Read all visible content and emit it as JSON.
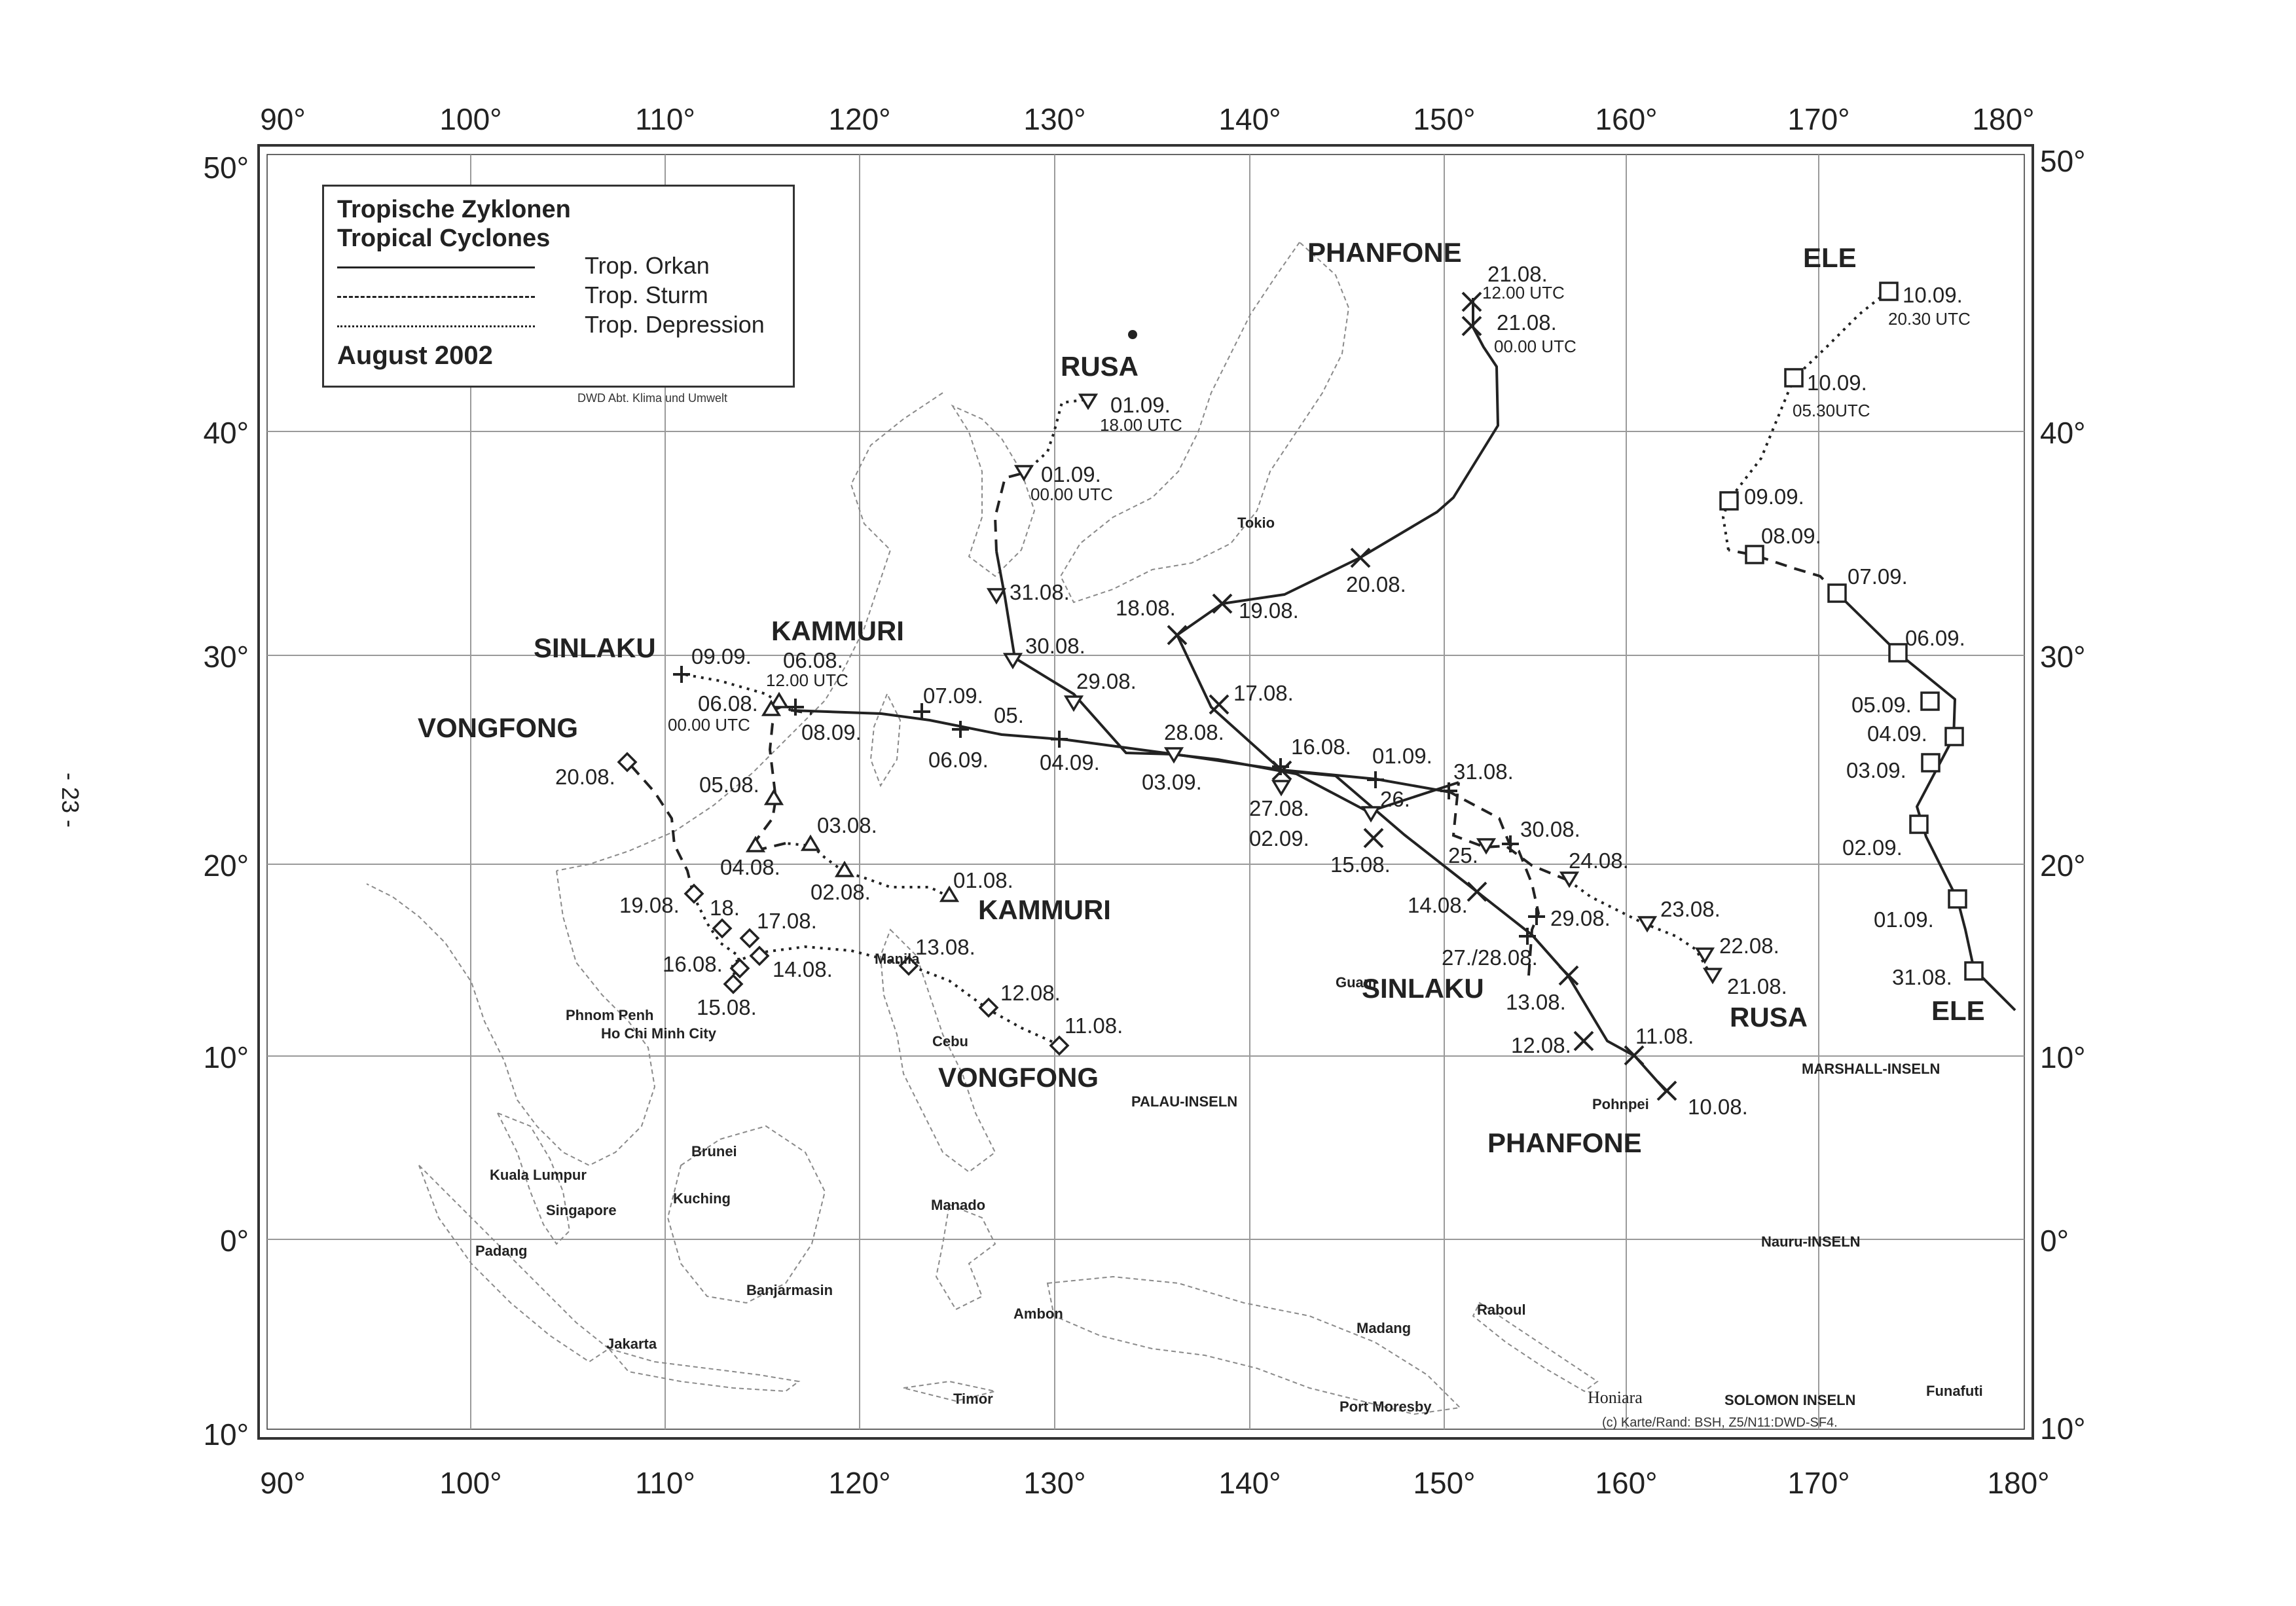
{
  "page_number": "- 23 -",
  "legend": {
    "title_de": "Tropische Zyklonen",
    "title_en": "Tropical Cyclones",
    "entries": [
      {
        "label": "Trop. Orkan",
        "style": "solid"
      },
      {
        "label": "Trop. Sturm",
        "style": "dashed"
      },
      {
        "label": "Trop. Depression",
        "style": "dotted"
      }
    ],
    "period": "August 2002"
  },
  "credit": "DWD   Abt. Klima und Umwelt",
  "copyright": "(c) Karte/Rand: BSH, Z5/N11:DWD-SF4.",
  "axes": {
    "lon_labels": [
      "90°",
      "100°",
      "110°",
      "120°",
      "130°",
      "140°",
      "150°",
      "160°",
      "170°",
      "180°"
    ],
    "lat_labels": [
      "50°",
      "40°",
      "30°",
      "20°",
      "10°",
      "0°",
      "10°"
    ]
  },
  "storm_names": [
    {
      "text": "PHANFONE"
    },
    {
      "text": "ELE"
    },
    {
      "text": "RUSA"
    },
    {
      "text": "KAMMURI"
    },
    {
      "text": "SINLAKU"
    },
    {
      "text": "VONGFONG"
    },
    {
      "text": "KAMMURI"
    },
    {
      "text": "VONGFONG"
    },
    {
      "text": "SINLAKU"
    },
    {
      "text": "RUSA"
    },
    {
      "text": "ELE"
    },
    {
      "text": "PHANFONE"
    }
  ],
  "places": [
    {
      "text": "Tokio"
    },
    {
      "text": "Guam"
    },
    {
      "text": "Pohnpei"
    },
    {
      "text": "MARSHALL-INSELN"
    },
    {
      "text": "PALAU-INSELN"
    },
    {
      "text": "Nauru-INSELN"
    },
    {
      "text": "Manila"
    },
    {
      "text": "Cebu"
    },
    {
      "text": "Phnom Penh"
    },
    {
      "text": "Ho Chi Minh City"
    },
    {
      "text": "Brunei"
    },
    {
      "text": "Kuala Lumpur"
    },
    {
      "text": "Singapore"
    },
    {
      "text": "Kuching"
    },
    {
      "text": "Padang"
    },
    {
      "text": "Manado"
    },
    {
      "text": "Banjarmasin"
    },
    {
      "text": "Ambon"
    },
    {
      "text": "Jakarta"
    },
    {
      "text": "Timor"
    },
    {
      "text": "Madang"
    },
    {
      "text": "Raboul"
    },
    {
      "text": "Port Moresby"
    },
    {
      "text": "Honiara"
    },
    {
      "text": "SOLOMON INSELN"
    },
    {
      "text": "Funafuti"
    }
  ],
  "track_labels": [
    {
      "text": "21.08."
    },
    {
      "text": "12.00 UTC"
    },
    {
      "text": "21.08."
    },
    {
      "text": "00.00 UTC"
    },
    {
      "text": "20.08."
    },
    {
      "text": "18.08."
    },
    {
      "text": "19.08."
    },
    {
      "text": "17.08."
    },
    {
      "text": "16.08."
    },
    {
      "text": "15.08."
    },
    {
      "text": "14.08."
    },
    {
      "text": "13.08."
    },
    {
      "text": "12.08."
    },
    {
      "text": "11.08."
    },
    {
      "text": "10.08."
    },
    {
      "text": "10.09."
    },
    {
      "text": "20.30 UTC"
    },
    {
      "text": "10.09."
    },
    {
      "text": "05.30UTC"
    },
    {
      "text": "09.09."
    },
    {
      "text": "08.09."
    },
    {
      "text": "07.09."
    },
    {
      "text": "06.09."
    },
    {
      "text": "05.09."
    },
    {
      "text": "04.09."
    },
    {
      "text": "03.09."
    },
    {
      "text": "02.09."
    },
    {
      "text": "01.09."
    },
    {
      "text": "31.08."
    },
    {
      "text": "01.09."
    },
    {
      "text": "18.00 UTC"
    },
    {
      "text": "01.09."
    },
    {
      "text": "00.00 UTC"
    },
    {
      "text": "31.08."
    },
    {
      "text": "30.08."
    },
    {
      "text": "29.08."
    },
    {
      "text": "28.08."
    },
    {
      "text": "27.08."
    },
    {
      "text": "26."
    },
    {
      "text": "25."
    },
    {
      "text": "24.08."
    },
    {
      "text": "23.08."
    },
    {
      "text": "22.08."
    },
    {
      "text": "21.08."
    },
    {
      "text": "09.09."
    },
    {
      "text": "08.09."
    },
    {
      "text": "07.09."
    },
    {
      "text": "06.09."
    },
    {
      "text": "05."
    },
    {
      "text": "04.09."
    },
    {
      "text": "03.09."
    },
    {
      "text": "02.09."
    },
    {
      "text": "01.09."
    },
    {
      "text": "31.08."
    },
    {
      "text": "30.08."
    },
    {
      "text": "29.08."
    },
    {
      "text": "27./28.08."
    },
    {
      "text": "06.08."
    },
    {
      "text": "12.00 UTC"
    },
    {
      "text": "06.08."
    },
    {
      "text": "00.00 UTC"
    },
    {
      "text": "05.08."
    },
    {
      "text": "04.08."
    },
    {
      "text": "03.08."
    },
    {
      "text": "02.08."
    },
    {
      "text": "01.08."
    },
    {
      "text": "20.08."
    },
    {
      "text": "19.08."
    },
    {
      "text": "18."
    },
    {
      "text": "17.08."
    },
    {
      "text": "16.08."
    },
    {
      "text": "14.08."
    },
    {
      "text": "15.08."
    },
    {
      "text": "13.08."
    },
    {
      "text": "12.08."
    },
    {
      "text": "11.08."
    }
  ]
}
